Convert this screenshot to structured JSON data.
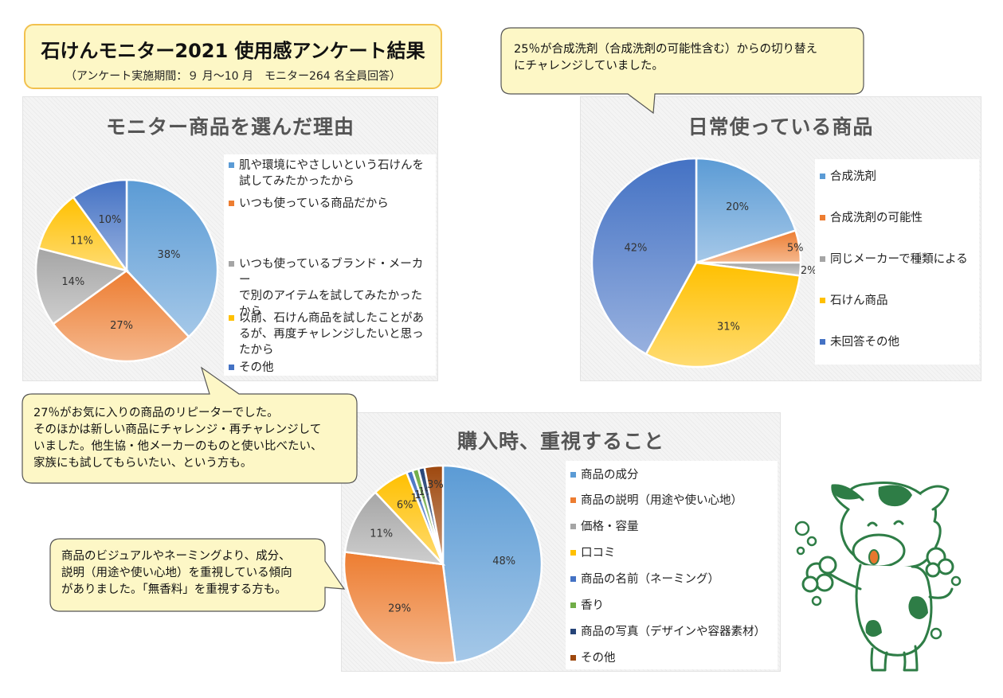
{
  "header": {
    "title": "石けんモニター2021 使用感アンケート結果",
    "subtitle": "（アンケート実施期間：９ 月～10 月　モニター264 名全員回答）"
  },
  "callouts": {
    "top_right": [
      "25％が合成洗剤（合成洗剤の可能性含む）からの切り替え",
      "にチャレンジしていました。"
    ],
    "middle_left": [
      "27％がお気に入りの商品のリピーターでした。",
      "そのほかは新しい商品にチャレンジ・再チャレンジして",
      "いました。他生協・他メーカーのものと使い比べたい、",
      "家族にも試してもらいたい、という方も。"
    ],
    "bottom_left": [
      "商品のビジュアルやネーミングより、成分、",
      "説明（用途や使い心地）を重視している傾向",
      "がありました。「無香料」を重視する方も。"
    ]
  },
  "colors": {
    "blue": "#5b9bd5",
    "orange": "#ed7d31",
    "gray": "#a5a5a5",
    "yellow": "#ffc000",
    "darkblue": "#4472c4",
    "green": "#70ad47",
    "navy": "#264478",
    "brown": "#9e480e"
  },
  "chart_data": [
    {
      "type": "pie",
      "title": "モニター商品を選んだ理由",
      "categories": [
        "肌や環境にやさしいという石けんを試してみたかったから",
        "いつも使っている商品だから",
        "いつも使っているブランド・メーカーで別のアイテムを試してみたかったから",
        "以前、石けん商品を試したことがあるが、再度チャレンジしたいと思ったから",
        "その他"
      ],
      "legend_lines": [
        [
          "肌や環境にやさしいという石けんを",
          "試してみたかったから"
        ],
        [
          "いつも使っている商品だから"
        ],
        [
          "いつも使っているブランド・メーカー",
          "で別のアイテムを試してみたかった",
          "から"
        ],
        [
          "以前、石けん商品を試したことがあ",
          "るが、再度チャレンジしたいと思っ",
          "たから"
        ],
        [
          "その他"
        ]
      ],
      "values": [
        38,
        27,
        14,
        11,
        10
      ],
      "labels": [
        "38%",
        "27%",
        "14%",
        "11%",
        "10%"
      ],
      "legend_position": "right"
    },
    {
      "type": "pie",
      "title": "日常使っている商品",
      "categories": [
        "合成洗剤",
        "合成洗剤の可能性",
        "同じメーカーで種類による",
        "石けん商品",
        "未回答その他"
      ],
      "values": [
        20,
        5,
        2,
        31,
        42
      ],
      "labels": [
        "20%",
        "5%",
        "2%",
        "31%",
        "42%"
      ],
      "legend_position": "right"
    },
    {
      "type": "pie",
      "title": "購入時、重視すること",
      "categories": [
        "商品の成分",
        "商品の説明（用途や使い心地）",
        "価格・容量",
        "口コミ",
        "商品の名前（ネーミング）",
        "香り",
        "商品の写真（デザインや容器素材）",
        "その他"
      ],
      "values": [
        48,
        29,
        11,
        6,
        1,
        1,
        1,
        3
      ],
      "labels": [
        "48%",
        "29%",
        "11%",
        "6%",
        "1%",
        "1%",
        "1%",
        "3%"
      ],
      "legend_position": "right"
    }
  ]
}
